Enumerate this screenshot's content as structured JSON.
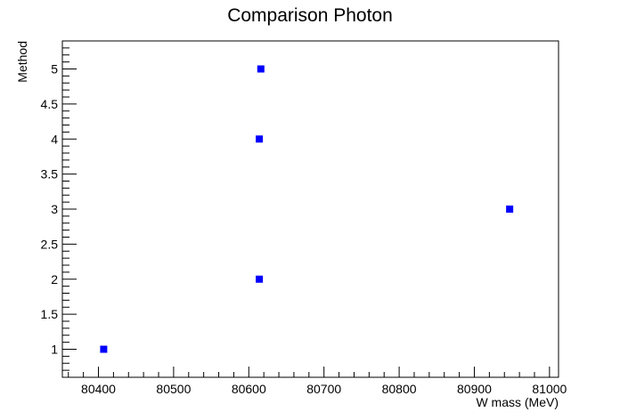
{
  "chart_data": {
    "type": "scatter",
    "title": "Comparison Photon",
    "xlabel": "W mass (MeV)",
    "ylabel": "Method",
    "xlim": [
      80352,
      81012
    ],
    "ylim": [
      0.6,
      5.4
    ],
    "x_ticks": [
      80400,
      80500,
      80600,
      80700,
      80800,
      80900,
      81000
    ],
    "y_ticks": [
      1,
      1.5,
      2,
      2.5,
      3,
      3.5,
      4,
      4.5,
      5
    ],
    "grid": false,
    "marker": "square",
    "colors": {
      "marker": "#0000ff",
      "axis": "#000000"
    },
    "points": [
      {
        "x": 80407,
        "y": 1
      },
      {
        "x": 80614,
        "y": 2
      },
      {
        "x": 80947,
        "y": 3
      },
      {
        "x": 80614,
        "y": 4
      },
      {
        "x": 80616,
        "y": 5
      }
    ]
  }
}
